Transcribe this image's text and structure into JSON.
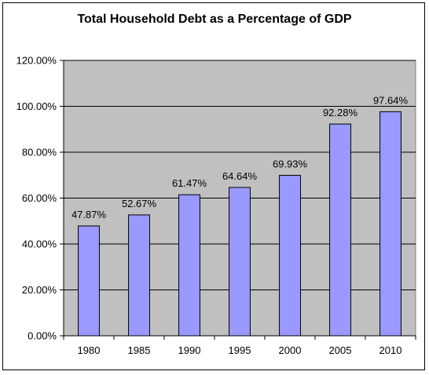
{
  "chart_data": {
    "type": "bar",
    "title": "Total Household Debt as a Percentage of GDP",
    "categories": [
      "1980",
      "1985",
      "1990",
      "1995",
      "2000",
      "2005",
      "2010"
    ],
    "values": [
      47.87,
      52.67,
      61.47,
      64.64,
      69.93,
      92.28,
      97.64
    ],
    "data_labels": [
      "47.87%",
      "52.67%",
      "61.47%",
      "64.64%",
      "69.93%",
      "92.28%",
      "97.64%"
    ],
    "y_ticks": [
      "0.00%",
      "20.00%",
      "40.00%",
      "60.00%",
      "80.00%",
      "100.00%",
      "120.00%"
    ],
    "ylim": [
      0,
      120
    ],
    "grid": true,
    "legend": "none",
    "colors": {
      "bar": "#9999ff",
      "plot_bg": "#c0c0c0",
      "grid": "#000000"
    }
  }
}
